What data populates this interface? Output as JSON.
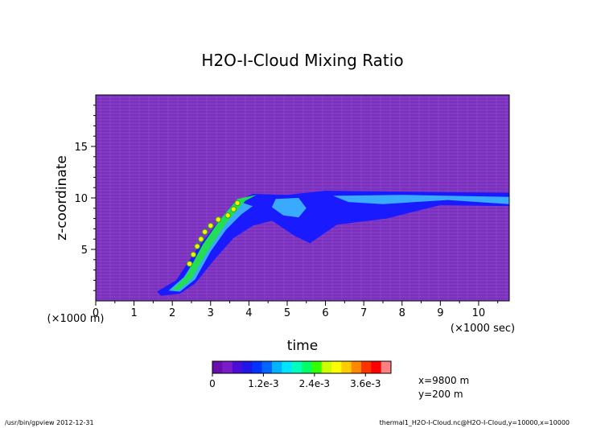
{
  "chart_data": {
    "type": "heatmap",
    "title": "H2O-I-Cloud Mixing Ratio",
    "xlabel": "time",
    "ylabel": "z-coordinate",
    "x_unit_label": "(×1000 sec)",
    "y_unit_label": "(×1000 m)",
    "xlim": [
      0,
      10.8
    ],
    "ylim": [
      0,
      20
    ],
    "x_ticks": [
      0,
      1,
      2,
      3,
      4,
      5,
      6,
      7,
      8,
      9,
      10
    ],
    "y_ticks": [
      5,
      10,
      15
    ],
    "colorbar": {
      "colors": [
        "#6a0dad",
        "#7a1bc8",
        "#4b0bd9",
        "#2016e8",
        "#0033ff",
        "#0066ff",
        "#00b3ff",
        "#00e5ff",
        "#00ffbf",
        "#00ff66",
        "#33ff00",
        "#ccff00",
        "#ffff00",
        "#ffcc00",
        "#ff8800",
        "#ff3300",
        "#ff0000",
        "#ff8080"
      ],
      "tick_labels": [
        "0",
        "1.2e-3",
        "2.4e-3",
        "3.6e-3"
      ],
      "tick_values": [
        0,
        0.0012,
        0.0024,
        0.0036
      ],
      "range": [
        0,
        0.0042
      ]
    },
    "cloud_features": [
      {
        "level": "low",
        "points": [
          [
            1.6,
            0.9
          ],
          [
            2.1,
            2.0
          ],
          [
            2.6,
            4.8
          ],
          [
            3.1,
            7.2
          ],
          [
            3.6,
            9.5
          ],
          [
            4.1,
            10.4
          ],
          [
            5.0,
            10.3
          ],
          [
            6.0,
            10.7
          ],
          [
            8.0,
            10.6
          ],
          [
            10.8,
            10.5
          ],
          [
            10.8,
            9.2
          ],
          [
            9.0,
            9.3
          ],
          [
            7.6,
            8.0
          ],
          [
            6.3,
            7.4
          ],
          [
            5.6,
            5.6
          ],
          [
            5.2,
            6.3
          ],
          [
            4.6,
            7.8
          ],
          [
            4.1,
            7.3
          ],
          [
            3.6,
            6.1
          ],
          [
            3.1,
            4.0
          ],
          [
            2.6,
            1.7
          ],
          [
            2.2,
            0.7
          ],
          [
            1.7,
            0.5
          ]
        ]
      },
      {
        "level": "mid",
        "points": [
          [
            1.9,
            1.0
          ],
          [
            2.3,
            2.3
          ],
          [
            2.75,
            4.9
          ],
          [
            3.2,
            7.6
          ],
          [
            3.7,
            9.7
          ],
          [
            4.1,
            9.2
          ],
          [
            3.8,
            8.4
          ],
          [
            3.4,
            6.9
          ],
          [
            3.0,
            4.8
          ],
          [
            2.6,
            2.1
          ],
          [
            2.2,
            0.9
          ]
        ]
      },
      {
        "level": "mid",
        "points": [
          [
            4.7,
            9.9
          ],
          [
            5.3,
            10.0
          ],
          [
            5.5,
            9.0
          ],
          [
            5.3,
            8.1
          ],
          [
            4.9,
            8.3
          ],
          [
            4.6,
            9.1
          ]
        ]
      },
      {
        "level": "mid",
        "points": [
          [
            6.2,
            10.2
          ],
          [
            8.0,
            10.3
          ],
          [
            10.8,
            10.1
          ],
          [
            10.8,
            9.4
          ],
          [
            9.2,
            9.8
          ],
          [
            7.5,
            9.4
          ],
          [
            6.6,
            9.6
          ]
        ]
      },
      {
        "level": "high",
        "points": [
          [
            2.0,
            1.1
          ],
          [
            2.35,
            2.4
          ],
          [
            2.8,
            5.5
          ],
          [
            3.25,
            7.9
          ],
          [
            3.7,
            9.9
          ],
          [
            4.2,
            10.3
          ],
          [
            3.9,
            9.7
          ],
          [
            3.4,
            7.5
          ],
          [
            2.9,
            4.7
          ],
          [
            2.5,
            2.1
          ],
          [
            2.15,
            1.0
          ]
        ]
      }
    ],
    "peak_markers": [
      [
        2.45,
        3.6
      ],
      [
        2.55,
        4.5
      ],
      [
        2.65,
        5.3
      ],
      [
        2.75,
        6.0
      ],
      [
        2.85,
        6.7
      ],
      [
        3.0,
        7.3
      ],
      [
        3.2,
        7.9
      ],
      [
        3.45,
        8.3
      ],
      [
        3.6,
        8.9
      ],
      [
        3.7,
        9.5
      ]
    ]
  },
  "meta_text": {
    "x_location": "x=9800 m",
    "y_location": "y=200 m",
    "program": "/usr/bin/gpview  2012-12-31",
    "file": "thermal1_H2O-I-Cloud.nc@H2O-I-Cloud,y=10000,x=10000"
  }
}
